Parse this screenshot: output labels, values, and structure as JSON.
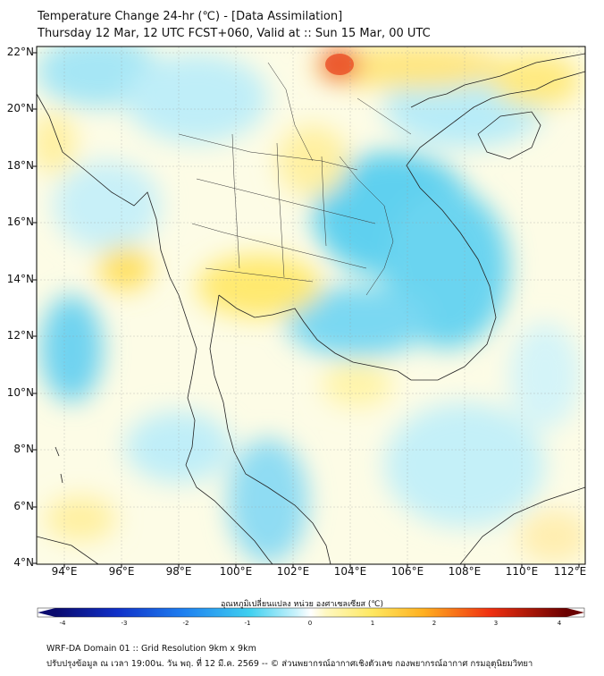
{
  "title": {
    "line1": "Temperature Change 24-hr (℃) - [Data Assimilation]",
    "line2": "Thursday 12 Mar, 12 UTC FCST+060, Valid at :: Sun 15 Mar, 00 UTC"
  },
  "map": {
    "lat_labels": [
      "22°N",
      "20°N",
      "18°N",
      "16°N",
      "14°N",
      "12°N",
      "10°N",
      "8°N",
      "6°N",
      "4°N"
    ],
    "lon_labels": [
      "94°E",
      "96°E",
      "98°E",
      "100°E",
      "102°E",
      "104°E",
      "106°E",
      "108°E",
      "110°E",
      "112°E"
    ],
    "lat_range": [
      4,
      22.2
    ],
    "lon_range": [
      93.2,
      112.4
    ]
  },
  "colorbar": {
    "title": "อุณหภูมิเปลี่ยนแปลง หน่วย องศาเซลเซียส (℃)",
    "ticks": [
      "-4",
      "-3",
      "-2",
      "-1",
      "0",
      "1",
      "2",
      "3",
      "4"
    ],
    "range": [
      -4,
      4
    ]
  },
  "footer": {
    "line1": "WRF-DA Domain 01 :: Grid Resolution 9km x 9km",
    "line2": "ปรับปรุงข้อมูล ณ เวลา 19:00น. วัน พฤ. ที่ 12 มี.ค. 2569 -- © ส่วนพยากรณ์อากาศเชิงตัวเลข กองพยากรณ์อากาศ กรมอุตุนิยมวิทยา"
  }
}
